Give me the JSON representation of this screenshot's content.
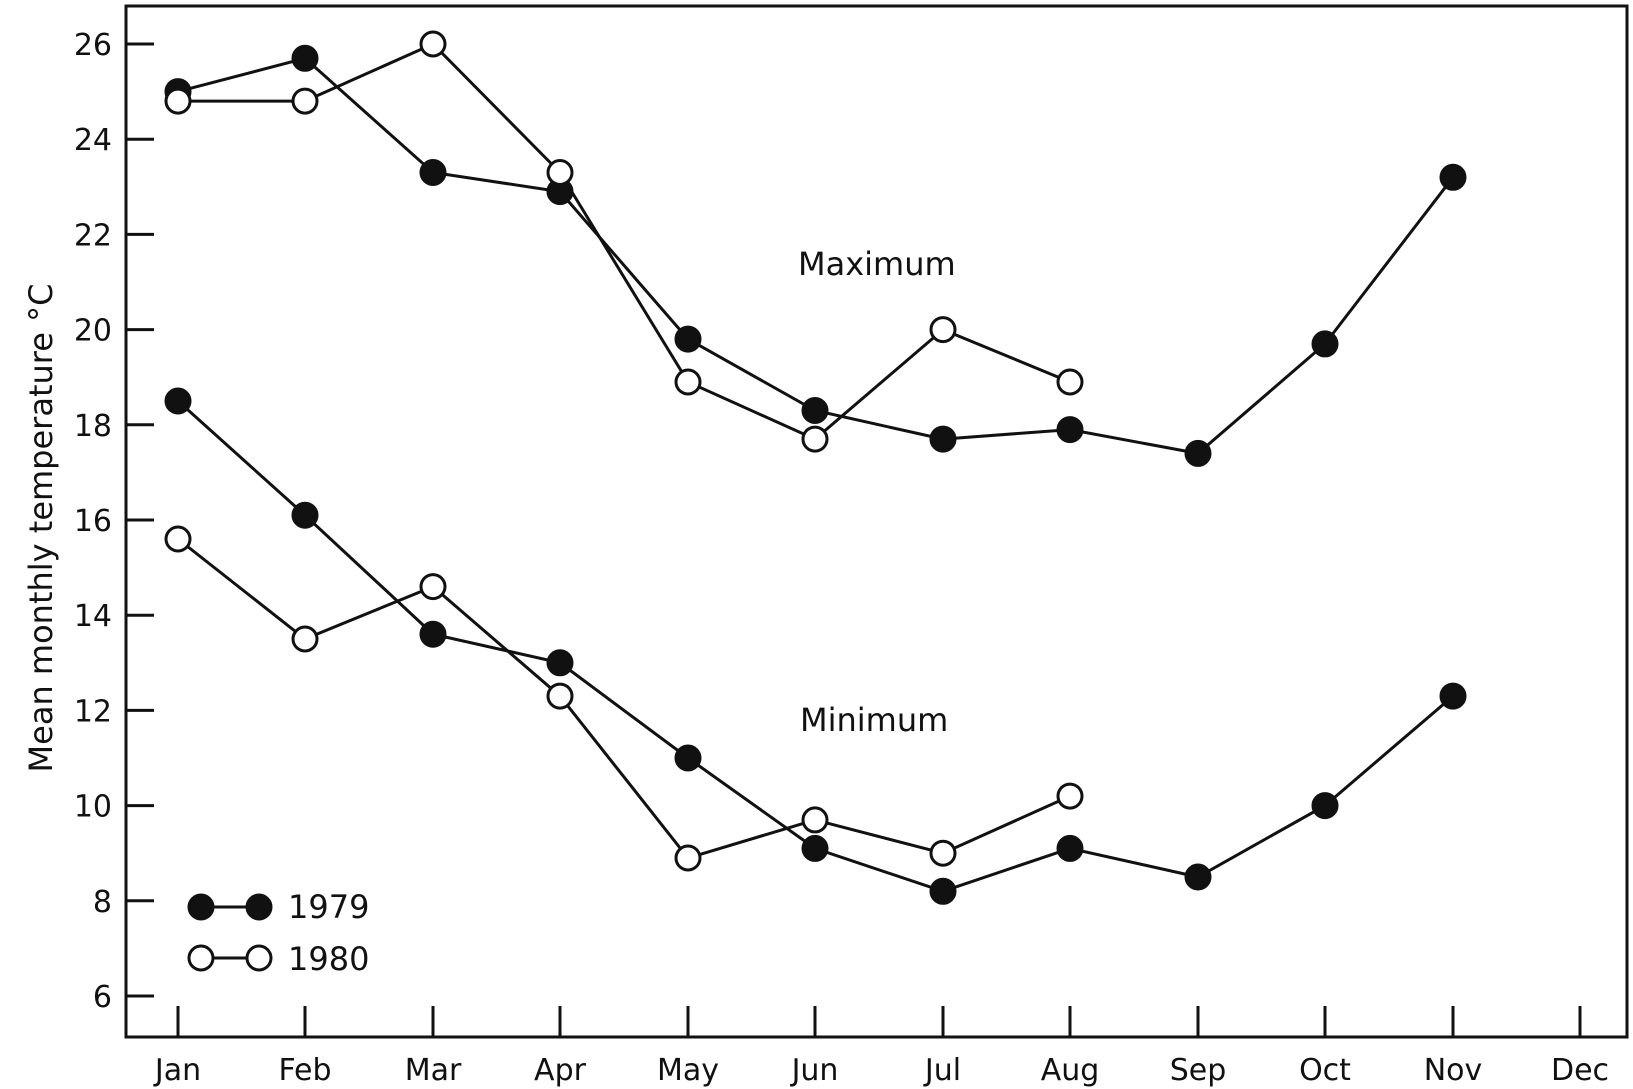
{
  "chart_data": {
    "type": "line",
    "ylabel": "Mean monthly temperature  °C",
    "ylim": [
      5,
      27
    ],
    "yticks": [
      6,
      8,
      10,
      12,
      14,
      16,
      18,
      20,
      22,
      24,
      26
    ],
    "categories": [
      "Jan",
      "Feb",
      "Mar",
      "Apr",
      "May",
      "Jun",
      "Jul",
      "Aug",
      "Sep",
      "Oct",
      "Nov",
      "Dec"
    ],
    "annotations": [
      "Maximum",
      "Minimum"
    ],
    "legend": {
      "placement": "bottom-left",
      "entries": [
        {
          "label": "1979",
          "marker": "filled"
        },
        {
          "label": "1980",
          "marker": "open"
        }
      ]
    },
    "series": [
      {
        "group": "Maximum",
        "year": "1979",
        "marker": "filled",
        "values": [
          25.0,
          25.7,
          23.3,
          22.9,
          19.8,
          18.3,
          17.7,
          17.9,
          17.4,
          19.7,
          23.2,
          null
        ]
      },
      {
        "group": "Maximum",
        "year": "1980",
        "marker": "open",
        "values": [
          24.8,
          24.8,
          26.0,
          23.3,
          18.9,
          17.7,
          20.0,
          18.9,
          null,
          null,
          null,
          null
        ]
      },
      {
        "group": "Minimum",
        "year": "1979",
        "marker": "filled",
        "values": [
          18.5,
          16.1,
          13.6,
          13.0,
          11.0,
          9.1,
          8.2,
          9.1,
          8.5,
          10.0,
          12.3,
          null
        ]
      },
      {
        "group": "Minimum",
        "year": "1980",
        "marker": "open",
        "values": [
          15.6,
          13.5,
          14.6,
          12.3,
          8.9,
          9.7,
          9.0,
          10.2,
          null,
          null,
          null,
          null
        ]
      }
    ]
  }
}
